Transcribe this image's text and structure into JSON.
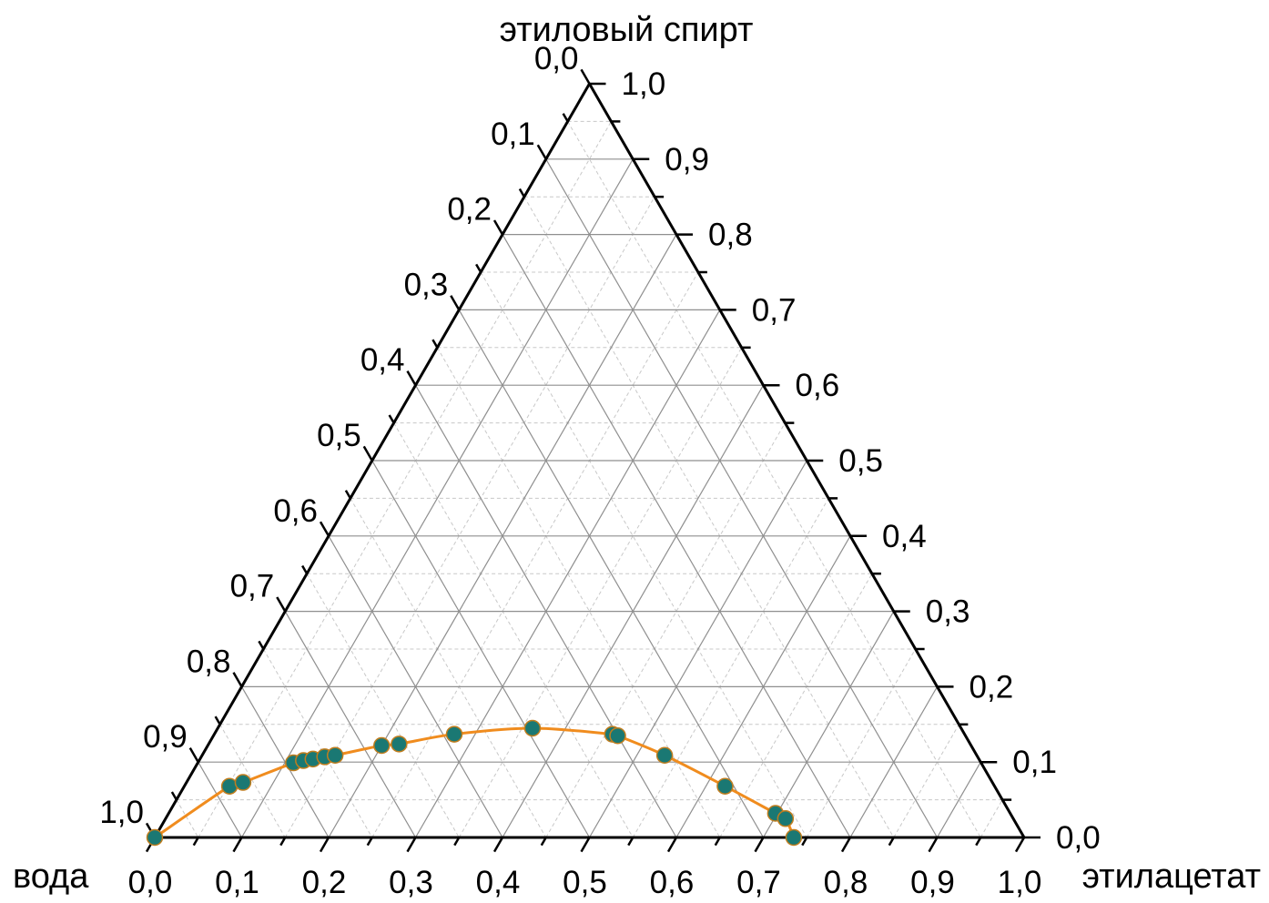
{
  "chart_data": {
    "type": "ternary",
    "corners": {
      "top": "этиловый спирт",
      "left": "вода",
      "right": "этилацетат"
    },
    "axes": {
      "bottom": {
        "component": "этилацетат",
        "ticks": [
          "0,0",
          "0,1",
          "0,2",
          "0,3",
          "0,4",
          "0,5",
          "0,6",
          "0,7",
          "0,8",
          "0,9",
          "1,0"
        ]
      },
      "left": {
        "component": "вода",
        "ticks": [
          "0,0",
          "0,1",
          "0,2",
          "0,3",
          "0,4",
          "0,5",
          "0,6",
          "0,7",
          "0,8",
          "0,9",
          "1,0"
        ]
      },
      "right": {
        "component": "этиловый спирт",
        "ticks": [
          "0,0",
          "0,1",
          "0,2",
          "0,3",
          "0,4",
          "0,5",
          "0,6",
          "0,7",
          "0,8",
          "0,9",
          "1,0"
        ]
      }
    },
    "grid": {
      "major": 0.1,
      "minor": 0.05
    },
    "series": [
      {
        "marker_color": "#1a7873",
        "marker_edge_color": "#c07d1e",
        "line_color": "#f08c1e",
        "fit_curve": true,
        "points": [
          {
            "этилацетат": 0.0,
            "этиловый спирт": 0.0
          },
          {
            "этилацетат": 0.052,
            "этиловый спирт": 0.068
          },
          {
            "этилацетат": 0.065,
            "этиловый спирт": 0.073
          },
          {
            "этилацетат": 0.11,
            "этиловый спирт": 0.099
          },
          {
            "этилацетат": 0.12,
            "этиловый спирт": 0.102
          },
          {
            "этилацетат": 0.13,
            "этиловый спирт": 0.104
          },
          {
            "этилацетат": 0.142,
            "этиловый спирт": 0.107
          },
          {
            "этилацетат": 0.153,
            "этиловый спирт": 0.109
          },
          {
            "этилацетат": 0.2,
            "этиловый спирт": 0.122
          },
          {
            "этилацетат": 0.219,
            "этиловый спирт": 0.124
          },
          {
            "этилацетат": 0.276,
            "этиловый спирт": 0.137
          },
          {
            "этилацетат": 0.362,
            "этиловый спирт": 0.145
          },
          {
            "этилацетат": 0.458,
            "этиловый спирт": 0.137
          },
          {
            "этилацетат": 0.465,
            "этиловый спирт": 0.135
          },
          {
            "этилацетат": 0.532,
            "этиловый спирт": 0.109
          },
          {
            "этилацетат": 0.622,
            "этиловый спирт": 0.068
          },
          {
            "этилацетат": 0.698,
            "этиловый спирт": 0.032
          },
          {
            "этилацетат": 0.713,
            "этиловый спирт": 0.025
          },
          {
            "этилацетат": 0.735,
            "этиловый спирт": 0.0
          }
        ]
      }
    ]
  }
}
